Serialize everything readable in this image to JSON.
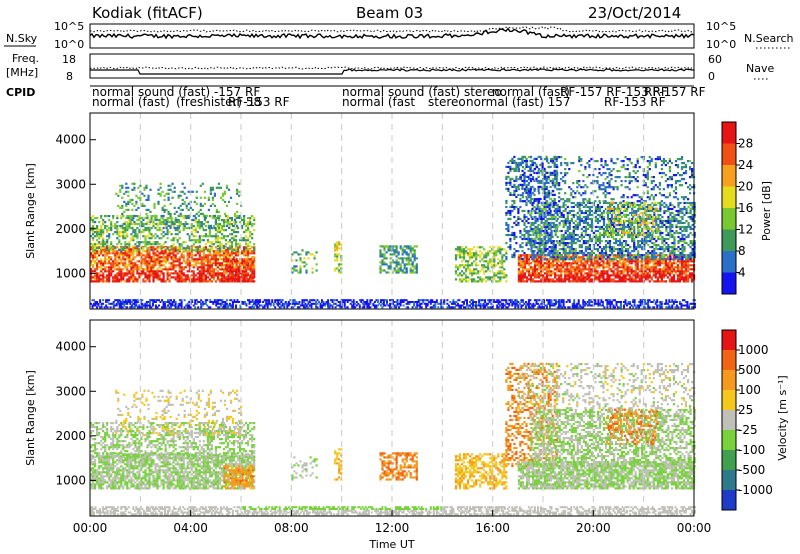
{
  "header": {
    "station": "Kodiak (fitACF)",
    "beam": "Beam 03",
    "date": "23/Oct/2014"
  },
  "left_labels": {
    "nsky": "N.Sky",
    "freq": "Freq.",
    "freq_unit": "[MHz]",
    "cpid": "CPID"
  },
  "right_labels": {
    "nsearch": "N.Search",
    "nave": "Nave"
  },
  "top_ticks": {
    "nsky_left": [
      "10^5",
      "10^0"
    ],
    "nsky_right": [
      "10^5",
      "10^0"
    ],
    "freq_left": [
      "18",
      "8"
    ],
    "nave_right": [
      "60",
      "0"
    ]
  },
  "cpid_labels": {
    "row1": [
      "normal",
      "sound (fast) -157 RF",
      "normal",
      "sound (fast) stereo",
      "normal (fast)",
      "RF-157 RF-153 RF",
      "RF-157 RF"
    ],
    "row2": [
      "normal (fast)",
      "(freshister) 58",
      "RF-153 RF",
      "normal (fast",
      "stereo",
      "normal (fast) 157",
      "RF-153 RF"
    ]
  },
  "chart_data": [
    {
      "type": "heatmap",
      "name": "power",
      "ylabel": "Slant Range [km]",
      "yticks": [
        "1000",
        "2000",
        "3000",
        "4000"
      ],
      "ylim": [
        200,
        4600
      ],
      "xlim": [
        0,
        24
      ],
      "colorbar": {
        "label": "Power [dB]",
        "ticks": [
          "4",
          "8",
          "12",
          "16",
          "20",
          "24",
          "28"
        ],
        "colors": [
          "#1414f0",
          "#2a6fc8",
          "#3d9a5a",
          "#78c832",
          "#e6dc1e",
          "#f5a01e",
          "#f05014",
          "#e61414"
        ]
      }
    },
    {
      "type": "heatmap",
      "name": "velocity",
      "ylabel": "Slant Range [km]",
      "yticks": [
        "1000",
        "2000",
        "3000",
        "4000"
      ],
      "ylim": [
        200,
        4600
      ],
      "xlim": [
        0,
        24
      ],
      "xlabel": "Time UT",
      "xticks": [
        "00:00",
        "04:00",
        "08:00",
        "12:00",
        "16:00",
        "20:00",
        "00:00"
      ],
      "colorbar": {
        "label": "Velocity [m s⁻¹]",
        "ticks": [
          "1000",
          "500",
          "100",
          "25",
          "-25",
          "-100",
          "-500",
          "-1000"
        ],
        "colors": [
          "#1e3cc8",
          "#2f7a8a",
          "#3fa050",
          "#78d23c",
          "#c0c0b8",
          "#f5c81e",
          "#f59a1e",
          "#f06414",
          "#e61414"
        ]
      }
    }
  ]
}
